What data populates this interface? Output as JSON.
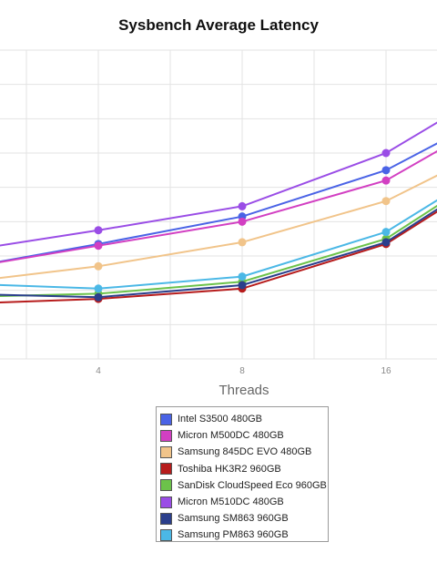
{
  "chart_data": {
    "type": "line",
    "title": "Sysbench Average Latency",
    "xlabel": "Threads",
    "ylabel": "",
    "categories": [
      "",
      "4",
      "8",
      "16",
      ""
    ],
    "ylim": [
      0,
      9
    ],
    "grid": true,
    "legend_position": "bottom",
    "series": [
      {
        "name": "Intel S3500 480GB",
        "color": "#4a63e6",
        "values": [
          2.6,
          3.35,
          4.15,
          5.5,
          7.7
        ]
      },
      {
        "name": "Micron M500DC 480GB",
        "color": "#d23fc2",
        "values": [
          2.6,
          3.3,
          4.0,
          5.2,
          7.6
        ]
      },
      {
        "name": "Samsung 845DC EVO 480GB",
        "color": "#f1c48a",
        "values": [
          2.2,
          2.7,
          3.4,
          4.6,
          6.7
        ]
      },
      {
        "name": "Toshiba HK3R2 960GB",
        "color": "#b71c1c",
        "values": [
          1.6,
          1.75,
          2.05,
          3.35,
          6.0
        ]
      },
      {
        "name": "SanDisk CloudSpeed Eco 960GB",
        "color": "#6cc24a",
        "values": [
          1.8,
          1.9,
          2.25,
          3.5,
          6.2
        ]
      },
      {
        "name": "Micron M510DC 480GB",
        "color": "#9a4de6",
        "values": [
          3.1,
          3.75,
          4.45,
          6.0,
          8.5
        ]
      },
      {
        "name": "Samsung SM863 960GB",
        "color": "#2b3f8c",
        "values": [
          1.9,
          1.8,
          2.15,
          3.4,
          6.1
        ]
      },
      {
        "name": "Samsung PM863 960GB",
        "color": "#4bb8e6",
        "values": [
          2.2,
          2.05,
          2.4,
          3.7,
          6.3
        ]
      }
    ]
  }
}
